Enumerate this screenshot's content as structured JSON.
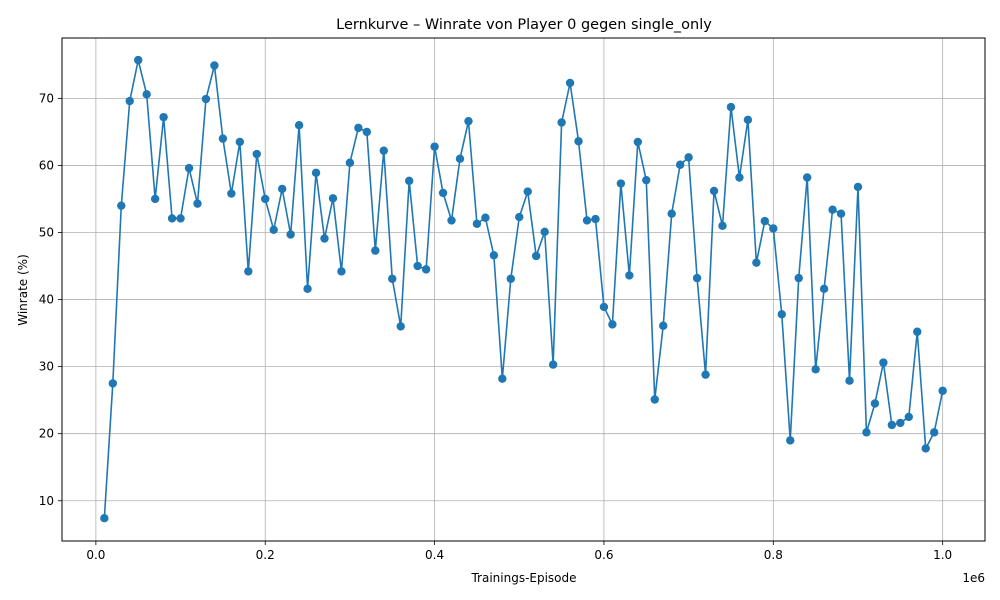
{
  "chart_data": {
    "type": "line",
    "title": "Lernkurve – Winrate von Player 0 gegen single_only",
    "xlabel": "Trainings-Episode",
    "ylabel": "Winrate (%)",
    "x_offset_label": "1e6",
    "xlim": [
      -40000,
      1050000
    ],
    "ylim": [
      4.0,
      79.0
    ],
    "x_ticks": [
      0,
      200000,
      400000,
      600000,
      800000,
      1000000
    ],
    "x_tick_labels": [
      "0.0",
      "0.2",
      "0.4",
      "0.6",
      "0.8",
      "1.0"
    ],
    "y_ticks": [
      10,
      20,
      30,
      40,
      50,
      60,
      70
    ],
    "y_tick_labels": [
      "10",
      "20",
      "30",
      "40",
      "50",
      "60",
      "70"
    ],
    "grid": true,
    "marker": "circle",
    "series_color": "#1f77b4",
    "series": [
      {
        "x": [
          10000,
          20000,
          30000,
          40000,
          50000,
          60000,
          70000,
          80000,
          90000,
          100000,
          110000,
          120000,
          130000,
          140000,
          150000,
          160000,
          170000,
          180000,
          190000,
          200000,
          210000,
          220000,
          230000,
          240000,
          250000,
          260000,
          270000,
          280000,
          290000,
          300000,
          310000,
          320000,
          330000,
          340000,
          350000,
          360000,
          370000,
          380000,
          390000,
          400000,
          410000,
          420000,
          430000,
          440000,
          450000,
          460000,
          470000,
          480000,
          490000,
          500000,
          510000,
          520000,
          530000,
          540000,
          550000,
          560000,
          570000,
          580000,
          590000,
          600000,
          610000,
          620000,
          630000,
          640000,
          650000,
          660000,
          670000,
          680000,
          690000,
          700000,
          710000,
          720000,
          730000,
          740000,
          750000,
          760000,
          770000,
          780000,
          790000,
          800000,
          810000,
          820000,
          830000,
          840000,
          850000,
          860000,
          870000,
          880000,
          890000,
          900000,
          910000,
          920000,
          930000,
          940000,
          950000,
          960000,
          970000,
          980000,
          990000,
          1000000
        ],
        "values": [
          7.4,
          27.5,
          54.0,
          69.6,
          75.7,
          70.6,
          55.0,
          67.2,
          52.1,
          52.1,
          59.6,
          54.3,
          69.9,
          74.9,
          64.0,
          55.8,
          63.5,
          44.2,
          61.7,
          55.0,
          50.4,
          56.5,
          49.7,
          66.0,
          41.6,
          58.9,
          49.1,
          55.1,
          44.2,
          60.4,
          65.6,
          65.0,
          47.3,
          62.2,
          43.1,
          36.0,
          57.7,
          45.0,
          44.5,
          62.8,
          55.9,
          51.8,
          61.0,
          66.6,
          51.3,
          52.2,
          46.6,
          28.2,
          43.1,
          52.3,
          56.1,
          46.5,
          50.1,
          30.3,
          66.4,
          72.3,
          63.6,
          51.8,
          52.0,
          38.9,
          36.3,
          57.3,
          43.6,
          63.5,
          57.8,
          25.1,
          36.1,
          52.8,
          60.1,
          61.2,
          43.2,
          28.8,
          56.2,
          51.0,
          68.7,
          58.2,
          66.8,
          45.5,
          51.7,
          50.6,
          37.8,
          19.0,
          43.2,
          58.2,
          29.6,
          41.6,
          53.4,
          52.8,
          27.9,
          56.8,
          20.2,
          24.5,
          30.6,
          21.3,
          21.6,
          22.5,
          35.2,
          17.8,
          20.2,
          26.4
        ]
      }
    ]
  }
}
